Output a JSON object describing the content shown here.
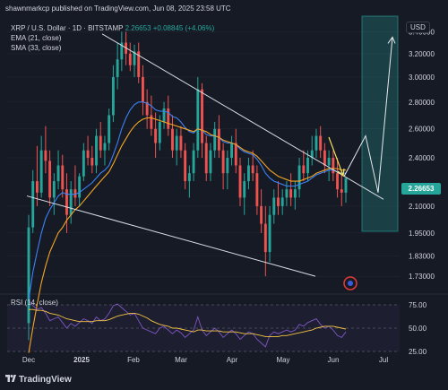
{
  "header": {
    "publish_line": "shawnmarkcp published on TradingView.com, Jun 08, 2025 23:58 UTC",
    "symbol_line": "XRP / U.S. Dollar · 1D · BITSTAMP",
    "last_price": "2.26653",
    "change": "+0.08845 (+4.06%)",
    "ema_label": "EMA (21, close)",
    "sma_label": "SMA (33, close)",
    "rsi_label": "RSI (14, close)",
    "currency_button": "USD",
    "brand": "TradingView"
  },
  "colors": {
    "background": "#161a25",
    "up": "#26a69a",
    "down": "#ef5350",
    "ema": "#3b82f6",
    "sma": "#f5a623",
    "rsi": "#7e57c2",
    "rsi_ma": "#f5c542",
    "trendline": "#d9dde4",
    "projection_box": "#26a69a",
    "arrow": "#f1e25a"
  },
  "chart_data": {
    "type": "candlestick",
    "symbol": "XRP / U.S. Dollar",
    "interval": "1D",
    "exchange": "BITSTAMP",
    "y_scale": "log",
    "ylim": [
      1.68,
      3.55
    ],
    "y_ticks": [
      "3.40000",
      "3.20000",
      "3.00000",
      "2.80000",
      "2.60000",
      "2.40000",
      "2.10000",
      "1.95000",
      "1.83000",
      "1.73000"
    ],
    "x_ticks": [
      "Dec",
      "2025",
      "Feb",
      "Mar",
      "Apr",
      "May",
      "Jun",
      "Jul"
    ],
    "last_price": 2.26653,
    "candles": [
      [
        1.52,
        2.05,
        1.45,
        1.98
      ],
      [
        1.98,
        2.32,
        1.95,
        2.25
      ],
      [
        2.25,
        2.48,
        2.1,
        2.18
      ],
      [
        2.18,
        2.55,
        2.15,
        2.45
      ],
      [
        2.45,
        2.62,
        2.3,
        2.38
      ],
      [
        2.38,
        2.45,
        2.1,
        2.15
      ],
      [
        2.15,
        2.3,
        2.05,
        2.25
      ],
      [
        2.25,
        2.45,
        2.2,
        2.35
      ],
      [
        2.35,
        2.42,
        2.15,
        2.2
      ],
      [
        2.2,
        2.3,
        1.95,
        2.05
      ],
      [
        2.05,
        2.25,
        2.0,
        2.2
      ],
      [
        2.2,
        2.35,
        2.1,
        2.15
      ],
      [
        2.15,
        2.3,
        2.1,
        2.28
      ],
      [
        2.28,
        2.5,
        2.25,
        2.45
      ],
      [
        2.45,
        2.55,
        2.35,
        2.4
      ],
      [
        2.4,
        2.48,
        2.3,
        2.35
      ],
      [
        2.35,
        2.6,
        2.3,
        2.55
      ],
      [
        2.55,
        2.65,
        2.4,
        2.45
      ],
      [
        2.45,
        2.55,
        2.35,
        2.5
      ],
      [
        2.5,
        2.75,
        2.45,
        2.7
      ],
      [
        2.7,
        3.1,
        2.65,
        3.0
      ],
      [
        3.0,
        3.3,
        2.9,
        3.15
      ],
      [
        3.15,
        3.4,
        3.05,
        3.3
      ],
      [
        3.3,
        3.4,
        3.1,
        3.2
      ],
      [
        3.2,
        3.3,
        3.05,
        3.1
      ],
      [
        3.1,
        3.28,
        3.0,
        3.22
      ],
      [
        3.22,
        3.3,
        2.95,
        3.0
      ],
      [
        3.0,
        3.1,
        2.7,
        2.8
      ],
      [
        2.8,
        2.9,
        2.6,
        2.7
      ],
      [
        2.7,
        2.85,
        2.55,
        2.6
      ],
      [
        2.6,
        2.72,
        2.4,
        2.5
      ],
      [
        2.5,
        2.7,
        2.45,
        2.65
      ],
      [
        2.65,
        2.8,
        2.6,
        2.75
      ],
      [
        2.75,
        2.85,
        2.55,
        2.6
      ],
      [
        2.6,
        2.7,
        2.4,
        2.45
      ],
      [
        2.45,
        2.6,
        2.35,
        2.55
      ],
      [
        2.55,
        2.62,
        2.4,
        2.45
      ],
      [
        2.45,
        2.5,
        2.2,
        2.25
      ],
      [
        2.25,
        2.35,
        2.15,
        2.3
      ],
      [
        2.3,
        2.5,
        2.25,
        2.45
      ],
      [
        2.45,
        3.0,
        2.4,
        2.9
      ],
      [
        2.9,
        2.95,
        2.4,
        2.5
      ],
      [
        2.5,
        2.55,
        2.25,
        2.3
      ],
      [
        2.3,
        2.5,
        2.25,
        2.45
      ],
      [
        2.45,
        2.65,
        2.4,
        2.6
      ],
      [
        2.6,
        2.7,
        2.4,
        2.45
      ],
      [
        2.45,
        2.5,
        2.2,
        2.3
      ],
      [
        2.3,
        2.45,
        2.2,
        2.4
      ],
      [
        2.4,
        2.55,
        2.35,
        2.5
      ],
      [
        2.5,
        2.6,
        2.3,
        2.35
      ],
      [
        2.35,
        2.4,
        2.1,
        2.15
      ],
      [
        2.15,
        2.3,
        2.05,
        2.25
      ],
      [
        2.25,
        2.4,
        2.2,
        2.35
      ],
      [
        2.35,
        2.45,
        2.25,
        2.3
      ],
      [
        2.3,
        2.35,
        2.05,
        2.1
      ],
      [
        2.1,
        2.2,
        1.95,
        2.0
      ],
      [
        2.0,
        2.1,
        1.73,
        1.85
      ],
      [
        1.85,
        2.1,
        1.8,
        2.05
      ],
      [
        2.05,
        2.2,
        2.0,
        2.15
      ],
      [
        2.15,
        2.25,
        2.05,
        2.1
      ],
      [
        2.1,
        2.2,
        2.05,
        2.15
      ],
      [
        2.15,
        2.25,
        2.1,
        2.2
      ],
      [
        2.2,
        2.3,
        2.1,
        2.15
      ],
      [
        2.15,
        2.25,
        2.08,
        2.2
      ],
      [
        2.2,
        2.4,
        2.15,
        2.35
      ],
      [
        2.35,
        2.45,
        2.25,
        2.3
      ],
      [
        2.3,
        2.45,
        2.25,
        2.4
      ],
      [
        2.4,
        2.55,
        2.35,
        2.45
      ],
      [
        2.45,
        2.6,
        2.4,
        2.55
      ],
      [
        2.55,
        2.62,
        2.4,
        2.45
      ],
      [
        2.45,
        2.5,
        2.3,
        2.35
      ],
      [
        2.35,
        2.45,
        2.25,
        2.4
      ],
      [
        2.4,
        2.45,
        2.25,
        2.3
      ],
      [
        2.3,
        2.4,
        2.15,
        2.2
      ],
      [
        2.2,
        2.3,
        2.1,
        2.18
      ],
      [
        2.18,
        2.27,
        2.12,
        2.27
      ]
    ],
    "ema_21": [
      1.62,
      1.75,
      1.85,
      1.95,
      2.03,
      2.08,
      2.12,
      2.16,
      2.18,
      2.17,
      2.17,
      2.17,
      2.18,
      2.2,
      2.22,
      2.24,
      2.27,
      2.3,
      2.32,
      2.35,
      2.42,
      2.5,
      2.6,
      2.68,
      2.74,
      2.78,
      2.8,
      2.8,
      2.79,
      2.77,
      2.74,
      2.73,
      2.73,
      2.72,
      2.69,
      2.68,
      2.65,
      2.61,
      2.58,
      2.57,
      2.6,
      2.59,
      2.56,
      2.55,
      2.55,
      2.54,
      2.51,
      2.5,
      2.5,
      2.49,
      2.46,
      2.44,
      2.43,
      2.42,
      2.39,
      2.35,
      2.3,
      2.27,
      2.25,
      2.24,
      2.23,
      2.22,
      2.22,
      2.22,
      2.23,
      2.24,
      2.25,
      2.27,
      2.29,
      2.3,
      2.31,
      2.32,
      2.32,
      2.31,
      2.3,
      2.3
    ],
    "sma_33": [
      1.4,
      1.5,
      1.6,
      1.7,
      1.78,
      1.85,
      1.9,
      1.95,
      1.98,
      2.02,
      2.05,
      2.08,
      2.1,
      2.13,
      2.16,
      2.19,
      2.22,
      2.25,
      2.28,
      2.31,
      2.36,
      2.42,
      2.48,
      2.53,
      2.58,
      2.62,
      2.65,
      2.67,
      2.68,
      2.68,
      2.67,
      2.66,
      2.65,
      2.64,
      2.63,
      2.62,
      2.61,
      2.6,
      2.59,
      2.58,
      2.6,
      2.59,
      2.58,
      2.56,
      2.55,
      2.54,
      2.52,
      2.51,
      2.5,
      2.49,
      2.47,
      2.45,
      2.44,
      2.43,
      2.41,
      2.38,
      2.35,
      2.32,
      2.3,
      2.28,
      2.27,
      2.26,
      2.25,
      2.25,
      2.25,
      2.26,
      2.27,
      2.28,
      2.3,
      2.31,
      2.32,
      2.33,
      2.33,
      2.33,
      2.32,
      2.32
    ],
    "rsi_14": {
      "ylim": [
        25,
        75
      ],
      "levels": [
        "75.00",
        "50.00",
        "25.00"
      ],
      "values": [
        80,
        74,
        70,
        72,
        66,
        58,
        60,
        62,
        56,
        50,
        55,
        52,
        56,
        60,
        58,
        55,
        62,
        58,
        60,
        66,
        74,
        76,
        72,
        68,
        64,
        66,
        58,
        50,
        48,
        46,
        44,
        50,
        52,
        48,
        44,
        48,
        45,
        40,
        44,
        48,
        62,
        48,
        42,
        46,
        50,
        46,
        40,
        44,
        48,
        44,
        38,
        42,
        46,
        44,
        38,
        34,
        30,
        42,
        46,
        44,
        46,
        48,
        46,
        48,
        54,
        52,
        56,
        58,
        60,
        54,
        50,
        52,
        48,
        42,
        40,
        46
      ],
      "ma": [
        70,
        70,
        69,
        69,
        68,
        66,
        65,
        64,
        62,
        60,
        59,
        58,
        57,
        57,
        57,
        57,
        58,
        58,
        58,
        59,
        61,
        63,
        64,
        65,
        66,
        66,
        65,
        63,
        61,
        58,
        56,
        54,
        53,
        52,
        50,
        50,
        49,
        48,
        47,
        46,
        48,
        48,
        47,
        47,
        47,
        47,
        46,
        46,
        46,
        46,
        45,
        44,
        44,
        44,
        43,
        42,
        41,
        41,
        41,
        41,
        42,
        42,
        43,
        44,
        45,
        46,
        47,
        48,
        50,
        51,
        52,
        52,
        52,
        51,
        50,
        49
      ]
    },
    "annotations": {
      "descending_wedge": "falling wedge trendlines",
      "projection": "target zone box with projected path toward 3.40"
    }
  }
}
